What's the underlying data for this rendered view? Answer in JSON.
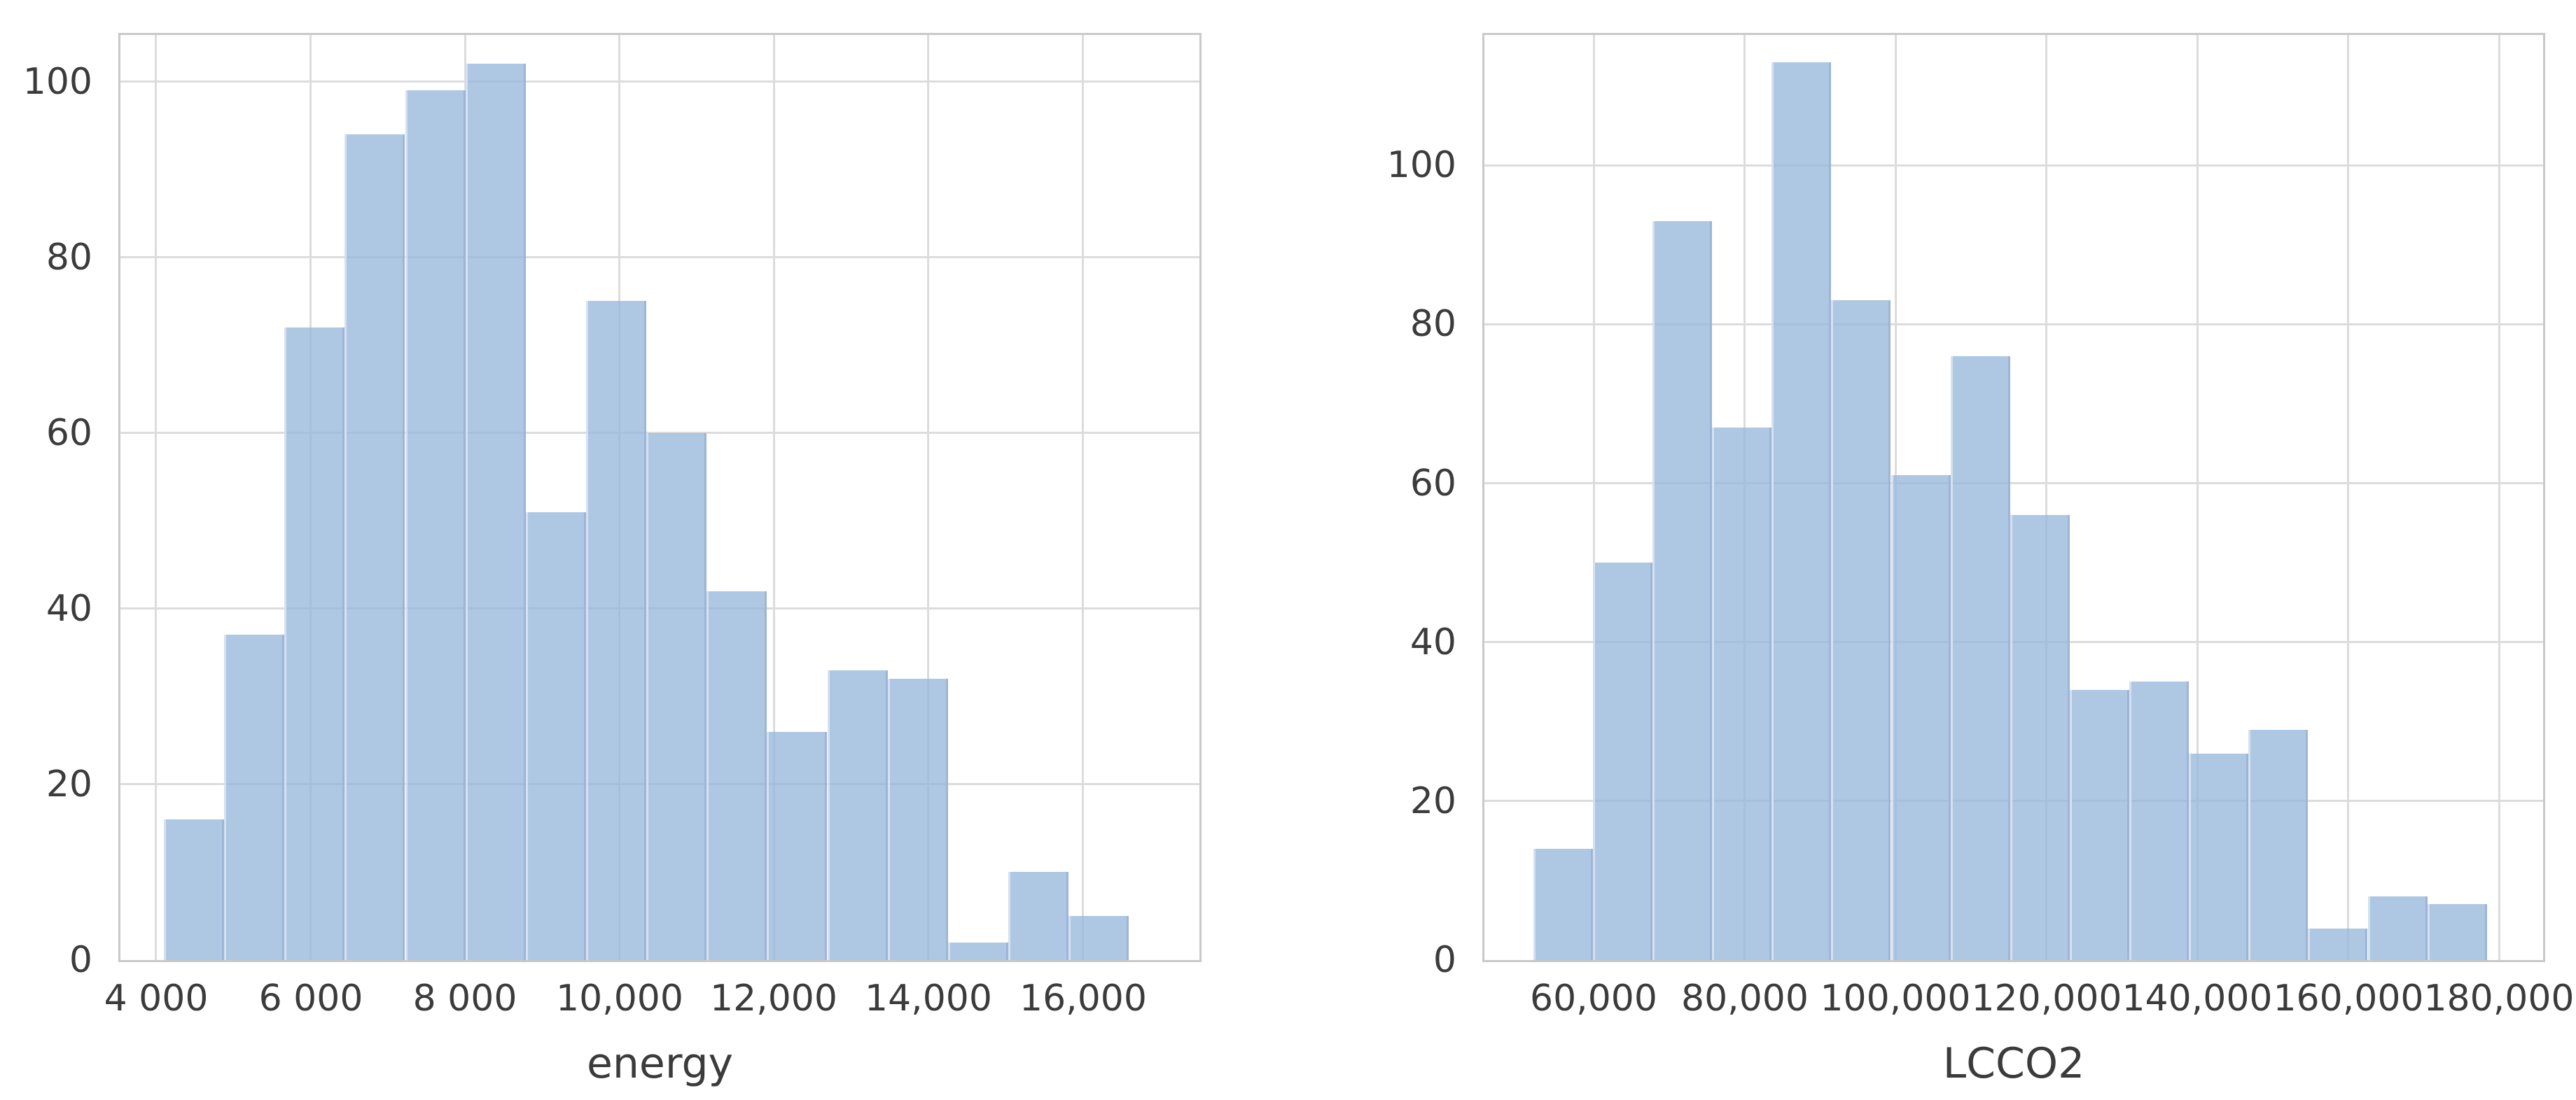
{
  "figure": {
    "background": "#ffffff",
    "bar_fill": "#aec7e3",
    "bar_seam_dark": "#9cb3d4",
    "bar_seam_light": "#d9e3f1",
    "grid_color": "#dcdcdc",
    "spine_color": "#c9c9c9",
    "text_color": "#3b3b3b"
  },
  "chart_data": [
    {
      "type": "histogram",
      "title": "",
      "xlabel": "energy",
      "ylabel": "",
      "bin_start": 4100,
      "bin_width": 781,
      "counts": [
        16,
        37,
        72,
        94,
        99,
        102,
        51,
        75,
        60,
        42,
        26,
        33,
        32,
        2,
        10,
        5
      ],
      "xlim": [
        3538,
        17509
      ],
      "ylim": [
        0,
        105.3
      ],
      "grid": true,
      "legend": false,
      "xticks": [
        {
          "value": 4000,
          "label": "4 000"
        },
        {
          "value": 6000,
          "label": "6 000"
        },
        {
          "value": 8000,
          "label": "8 000"
        },
        {
          "value": 10000,
          "label": "10,000"
        },
        {
          "value": 12000,
          "label": "12,000"
        },
        {
          "value": 14000,
          "label": "14,000"
        },
        {
          "value": 16000,
          "label": "16,000"
        }
      ],
      "yticks": [
        {
          "value": 0,
          "label": "0"
        },
        {
          "value": 20,
          "label": "20"
        },
        {
          "value": 40,
          "label": "40"
        },
        {
          "value": 60,
          "label": "60"
        },
        {
          "value": 80,
          "label": "80"
        },
        {
          "value": 100,
          "label": "100"
        }
      ]
    },
    {
      "type": "histogram",
      "title": "",
      "xlabel": "LCCO2",
      "ylabel": "",
      "bin_start": 52000,
      "bin_width": 7900,
      "counts": [
        14,
        50,
        93,
        67,
        113,
        83,
        61,
        76,
        56,
        34,
        35,
        26,
        29,
        4,
        8,
        7
      ],
      "xlim": [
        45522,
        185846
      ],
      "ylim": [
        0,
        116.4
      ],
      "grid": true,
      "legend": false,
      "xticks": [
        {
          "value": 60000,
          "label": "60,000"
        },
        {
          "value": 80000,
          "label": "80,000"
        },
        {
          "value": 100000,
          "label": "100,000"
        },
        {
          "value": 120000,
          "label": "120,000"
        },
        {
          "value": 140000,
          "label": "140,000"
        },
        {
          "value": 160000,
          "label": "160,000"
        },
        {
          "value": 180000,
          "label": "180,000"
        }
      ],
      "yticks": [
        {
          "value": 0,
          "label": "0"
        },
        {
          "value": 20,
          "label": "20"
        },
        {
          "value": 40,
          "label": "40"
        },
        {
          "value": 60,
          "label": "60"
        },
        {
          "value": 80,
          "label": "80"
        },
        {
          "value": 100,
          "label": "100"
        }
      ]
    }
  ]
}
